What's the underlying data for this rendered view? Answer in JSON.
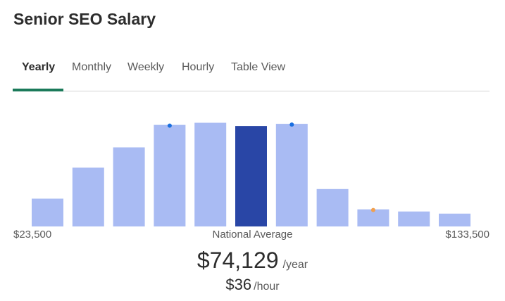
{
  "title": "Senior SEO Salary",
  "tabs": [
    {
      "label": "Yearly",
      "active": true
    },
    {
      "label": "Monthly",
      "active": false
    },
    {
      "label": "Weekly",
      "active": false
    },
    {
      "label": "Hourly",
      "active": false
    },
    {
      "label": "Table View",
      "active": false
    }
  ],
  "colors": {
    "accent": "#1b7a5a",
    "bar": "#a9bbf3",
    "bar_highlight": "#2946a6",
    "marker_blue": "#1a6fe0",
    "marker_orange": "#f0a050"
  },
  "chart_data": {
    "type": "bar",
    "range_min_label": "$23,500",
    "range_max_label": "$133,500",
    "center_label": "National Average",
    "values": [
      26,
      55,
      74,
      95,
      97,
      94,
      96,
      35,
      16,
      14,
      12
    ],
    "highlight_index": 5,
    "markers": [
      {
        "bar": 3,
        "color": "blue"
      },
      {
        "bar": 6,
        "color": "blue"
      },
      {
        "bar": 8,
        "color": "orange"
      }
    ]
  },
  "salary": {
    "yearly": "$74,129",
    "yearly_unit": "/year",
    "hourly": "$36",
    "hourly_unit": "/hour"
  }
}
